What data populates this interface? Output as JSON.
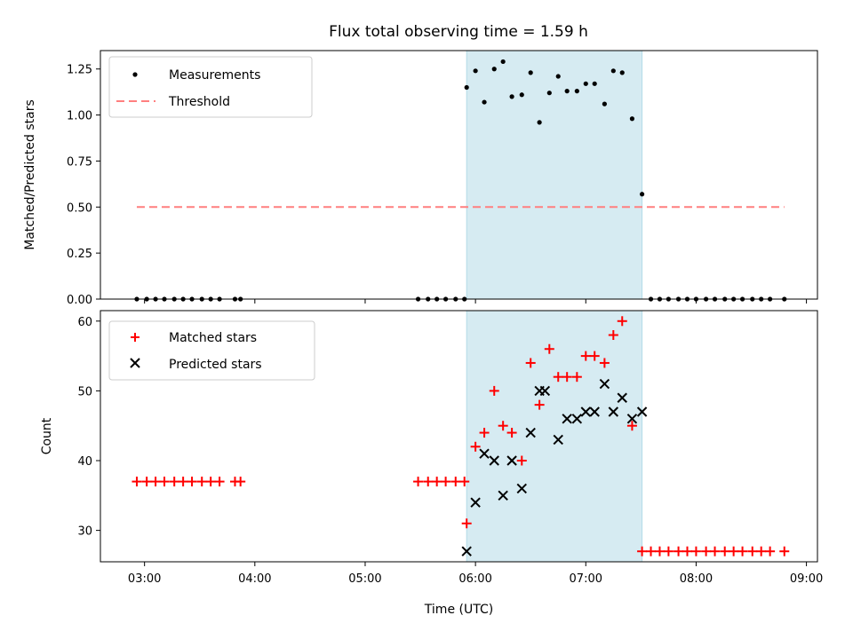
{
  "chart_data": [
    {
      "type": "scatter",
      "title": "Flux total observing time = 1.59 h",
      "xlabel": "",
      "ylabel": "Matched/Predicted stars",
      "xlim": [
        2.6,
        9.1
      ],
      "ylim": [
        0,
        1.35
      ],
      "yticks": [
        0,
        0.25,
        0.5,
        0.75,
        1.0,
        1.25
      ],
      "ytick_labels": [
        "0.00",
        "0.25",
        "0.50",
        "0.75",
        "1.00",
        "1.25"
      ],
      "shaded_span": [
        5.92,
        7.51
      ],
      "series": [
        {
          "name": "Measurements",
          "marker": "dot",
          "color": "#000000",
          "x": [
            2.93,
            3.02,
            3.1,
            3.18,
            3.27,
            3.35,
            3.43,
            3.52,
            3.6,
            3.68,
            3.82,
            3.87,
            5.48,
            5.57,
            5.65,
            5.73,
            5.82,
            5.9,
            5.92,
            6.0,
            6.08,
            6.17,
            6.25,
            6.33,
            6.42,
            6.5,
            6.58,
            6.67,
            6.75,
            6.83,
            6.92,
            7.0,
            7.08,
            7.17,
            7.25,
            7.33,
            7.42,
            7.51,
            7.59,
            7.67,
            7.75,
            7.84,
            7.92,
            8.0,
            8.09,
            8.17,
            8.26,
            8.34,
            8.42,
            8.51,
            8.59,
            8.67,
            8.8
          ],
          "y": [
            0,
            0,
            0,
            0,
            0,
            0,
            0,
            0,
            0,
            0,
            0,
            0,
            0,
            0,
            0,
            0,
            0,
            0,
            1.15,
            1.24,
            1.07,
            1.25,
            1.29,
            1.1,
            1.11,
            1.23,
            0.96,
            1.12,
            1.21,
            1.13,
            1.13,
            1.17,
            1.17,
            1.06,
            1.24,
            1.23,
            0.98,
            0.57,
            0,
            0,
            0,
            0,
            0,
            0,
            0,
            0,
            0,
            0,
            0,
            0,
            0,
            0,
            0
          ]
        },
        {
          "name": "Threshold",
          "marker": "dashed-line",
          "color": "#ff7f7f",
          "x": [
            2.93,
            8.8
          ],
          "y": [
            0.5,
            0.5
          ]
        }
      ]
    },
    {
      "type": "scatter",
      "title": "",
      "xlabel": "Time (UTC)",
      "ylabel": "Count",
      "xlim": [
        2.6,
        9.1
      ],
      "ylim": [
        25.5,
        61.5
      ],
      "yticks": [
        30,
        40,
        50,
        60
      ],
      "ytick_labels": [
        "30",
        "40",
        "50",
        "60"
      ],
      "xticks": [
        3,
        4,
        5,
        6,
        7,
        8,
        9
      ],
      "xtick_labels": [
        "03:00",
        "04:00",
        "05:00",
        "06:00",
        "07:00",
        "08:00",
        "09:00"
      ],
      "shaded_span": [
        5.92,
        7.51
      ],
      "series": [
        {
          "name": "Matched stars",
          "marker": "plus",
          "color": "#ff0000",
          "x": [
            2.93,
            3.02,
            3.1,
            3.18,
            3.27,
            3.35,
            3.43,
            3.52,
            3.6,
            3.68,
            3.82,
            3.87,
            5.48,
            5.57,
            5.65,
            5.73,
            5.82,
            5.9,
            5.92,
            6.0,
            6.08,
            6.17,
            6.25,
            6.33,
            6.42,
            6.5,
            6.58,
            6.67,
            6.75,
            6.83,
            6.92,
            7.0,
            7.08,
            7.17,
            7.25,
            7.33,
            7.42,
            7.51,
            7.59,
            7.67,
            7.75,
            7.84,
            7.92,
            8.0,
            8.09,
            8.17,
            8.26,
            8.34,
            8.42,
            8.51,
            8.59,
            8.67,
            8.8
          ],
          "y": [
            37,
            37,
            37,
            37,
            37,
            37,
            37,
            37,
            37,
            37,
            37,
            37,
            37,
            37,
            37,
            37,
            37,
            37,
            31,
            42,
            44,
            50,
            45,
            44,
            40,
            54,
            48,
            56,
            52,
            52,
            52,
            55,
            55,
            54,
            58,
            60,
            45,
            27,
            27,
            27,
            27,
            27,
            27,
            27,
            27,
            27,
            27,
            27,
            27,
            27,
            27,
            27,
            27
          ]
        },
        {
          "name": "Predicted stars",
          "marker": "x",
          "color": "#000000",
          "x": [
            5.92,
            6.0,
            6.08,
            6.17,
            6.25,
            6.33,
            6.42,
            6.5,
            6.58,
            6.63,
            6.75,
            6.83,
            6.92,
            7.0,
            7.08,
            7.17,
            7.25,
            7.33,
            7.42,
            7.51
          ],
          "y": [
            27,
            34,
            41,
            40,
            35,
            40,
            36,
            44,
            50,
            50,
            43,
            46,
            46,
            47,
            47,
            51,
            47,
            49,
            46,
            47
          ]
        }
      ]
    }
  ]
}
